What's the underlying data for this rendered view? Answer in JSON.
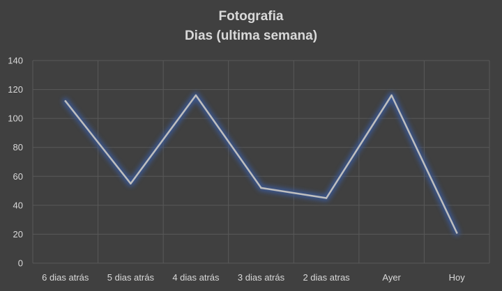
{
  "chart_data": {
    "type": "line",
    "title": "Fotografia",
    "subtitle": "Dias (ultima semana)",
    "categories": [
      "6 dias atrás",
      "5 dias atrás",
      "4 dias atrás",
      "3 dias atrás",
      "2 dias atras",
      "Ayer",
      "Hoy"
    ],
    "series": [
      {
        "values": [
          112,
          55,
          116,
          52,
          45,
          116,
          21
        ]
      }
    ],
    "ylim": [
      0,
      140
    ],
    "yticks": [
      0,
      20,
      40,
      60,
      80,
      100,
      120,
      140
    ],
    "grid": true,
    "legend": "none",
    "colors": {
      "background": "#404040",
      "grid": "#595959",
      "line": "#bfbfbf",
      "glow": "#3b5894",
      "text": "#d9d9d9"
    }
  }
}
